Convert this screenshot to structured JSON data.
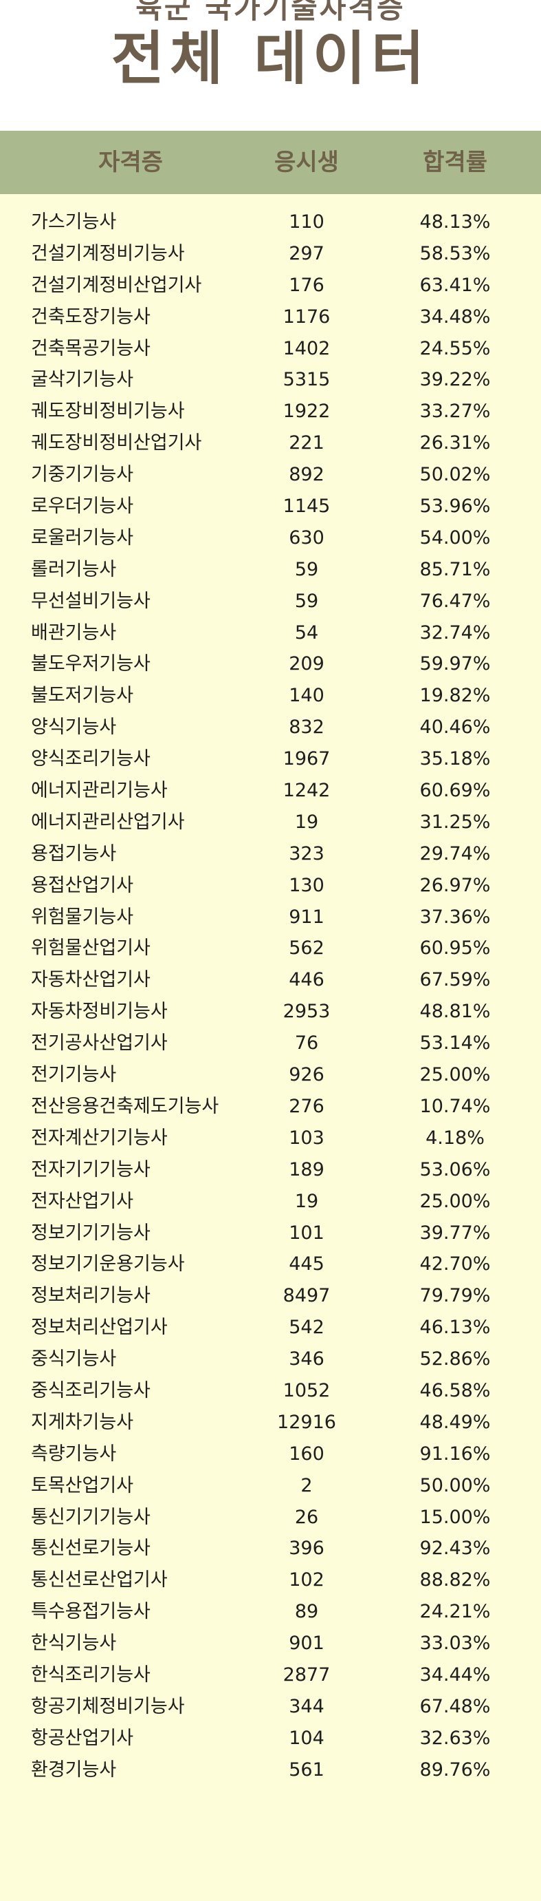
{
  "header": {
    "subtitle": "육군 국가기술자격증",
    "title": "전체 데이터"
  },
  "table": {
    "columns": [
      "자격증",
      "응시생",
      "합격률"
    ],
    "rows": [
      {
        "name": "가스기능사",
        "applicants": "110",
        "pass_rate": "48.13%"
      },
      {
        "name": "건설기계정비기능사",
        "applicants": "297",
        "pass_rate": "58.53%"
      },
      {
        "name": "건설기계정비산업기사",
        "applicants": "176",
        "pass_rate": "63.41%"
      },
      {
        "name": "건축도장기능사",
        "applicants": "1176",
        "pass_rate": "34.48%"
      },
      {
        "name": "건축목공기능사",
        "applicants": "1402",
        "pass_rate": "24.55%"
      },
      {
        "name": "굴삭기기능사",
        "applicants": "5315",
        "pass_rate": "39.22%"
      },
      {
        "name": "궤도장비정비기능사",
        "applicants": "1922",
        "pass_rate": "33.27%"
      },
      {
        "name": "궤도장비정비산업기사",
        "applicants": "221",
        "pass_rate": "26.31%"
      },
      {
        "name": "기중기기능사",
        "applicants": "892",
        "pass_rate": "50.02%"
      },
      {
        "name": "로우더기능사",
        "applicants": "1145",
        "pass_rate": "53.96%"
      },
      {
        "name": "로울러기능사",
        "applicants": "630",
        "pass_rate": "54.00%"
      },
      {
        "name": "롤러기능사",
        "applicants": "59",
        "pass_rate": "85.71%"
      },
      {
        "name": "무선설비기능사",
        "applicants": "59",
        "pass_rate": "76.47%"
      },
      {
        "name": "배관기능사",
        "applicants": "54",
        "pass_rate": "32.74%"
      },
      {
        "name": "불도우저기능사",
        "applicants": "209",
        "pass_rate": "59.97%"
      },
      {
        "name": "불도저기능사",
        "applicants": "140",
        "pass_rate": "19.82%"
      },
      {
        "name": "양식기능사",
        "applicants": "832",
        "pass_rate": "40.46%"
      },
      {
        "name": "양식조리기능사",
        "applicants": "1967",
        "pass_rate": "35.18%"
      },
      {
        "name": "에너지관리기능사",
        "applicants": "1242",
        "pass_rate": "60.69%"
      },
      {
        "name": "에너지관리산업기사",
        "applicants": "19",
        "pass_rate": "31.25%"
      },
      {
        "name": "용접기능사",
        "applicants": "323",
        "pass_rate": "29.74%"
      },
      {
        "name": "용접산업기사",
        "applicants": "130",
        "pass_rate": "26.97%"
      },
      {
        "name": "위험물기능사",
        "applicants": "911",
        "pass_rate": "37.36%"
      },
      {
        "name": "위험물산업기사",
        "applicants": "562",
        "pass_rate": "60.95%"
      },
      {
        "name": "자동차산업기사",
        "applicants": "446",
        "pass_rate": "67.59%"
      },
      {
        "name": "자동차정비기능사",
        "applicants": "2953",
        "pass_rate": "48.81%"
      },
      {
        "name": "전기공사산업기사",
        "applicants": "76",
        "pass_rate": "53.14%"
      },
      {
        "name": "전기기능사",
        "applicants": "926",
        "pass_rate": "25.00%"
      },
      {
        "name": "전산응용건축제도기능사",
        "applicants": "276",
        "pass_rate": "10.74%"
      },
      {
        "name": "전자계산기기능사",
        "applicants": "103",
        "pass_rate": "4.18%"
      },
      {
        "name": "전자기기기능사",
        "applicants": "189",
        "pass_rate": "53.06%"
      },
      {
        "name": "전자산업기사",
        "applicants": "19",
        "pass_rate": "25.00%"
      },
      {
        "name": "정보기기기능사",
        "applicants": "101",
        "pass_rate": "39.77%"
      },
      {
        "name": "정보기기운용기능사",
        "applicants": "445",
        "pass_rate": "42.70%"
      },
      {
        "name": "정보처리기능사",
        "applicants": "8497",
        "pass_rate": "79.79%"
      },
      {
        "name": "정보처리산업기사",
        "applicants": "542",
        "pass_rate": "46.13%"
      },
      {
        "name": "중식기능사",
        "applicants": "346",
        "pass_rate": "52.86%"
      },
      {
        "name": "중식조리기능사",
        "applicants": "1052",
        "pass_rate": "46.58%"
      },
      {
        "name": "지게차기능사",
        "applicants": "12916",
        "pass_rate": "48.49%"
      },
      {
        "name": "측량기능사",
        "applicants": "160",
        "pass_rate": "91.16%"
      },
      {
        "name": "토목산업기사",
        "applicants": "2",
        "pass_rate": "50.00%"
      },
      {
        "name": "통신기기기능사",
        "applicants": "26",
        "pass_rate": "15.00%"
      },
      {
        "name": "통신선로기능사",
        "applicants": "396",
        "pass_rate": "92.43%"
      },
      {
        "name": "통신선로산업기사",
        "applicants": "102",
        "pass_rate": "88.82%"
      },
      {
        "name": "특수용접기능사",
        "applicants": "89",
        "pass_rate": "24.21%"
      },
      {
        "name": "한식기능사",
        "applicants": "901",
        "pass_rate": "33.03%"
      },
      {
        "name": "한식조리기능사",
        "applicants": "2877",
        "pass_rate": "34.44%"
      },
      {
        "name": "항공기체정비기능사",
        "applicants": "344",
        "pass_rate": "67.48%"
      },
      {
        "name": "항공산업기사",
        "applicants": "104",
        "pass_rate": "32.63%"
      },
      {
        "name": "환경기능사",
        "applicants": "561",
        "pass_rate": "89.76%"
      }
    ]
  }
}
